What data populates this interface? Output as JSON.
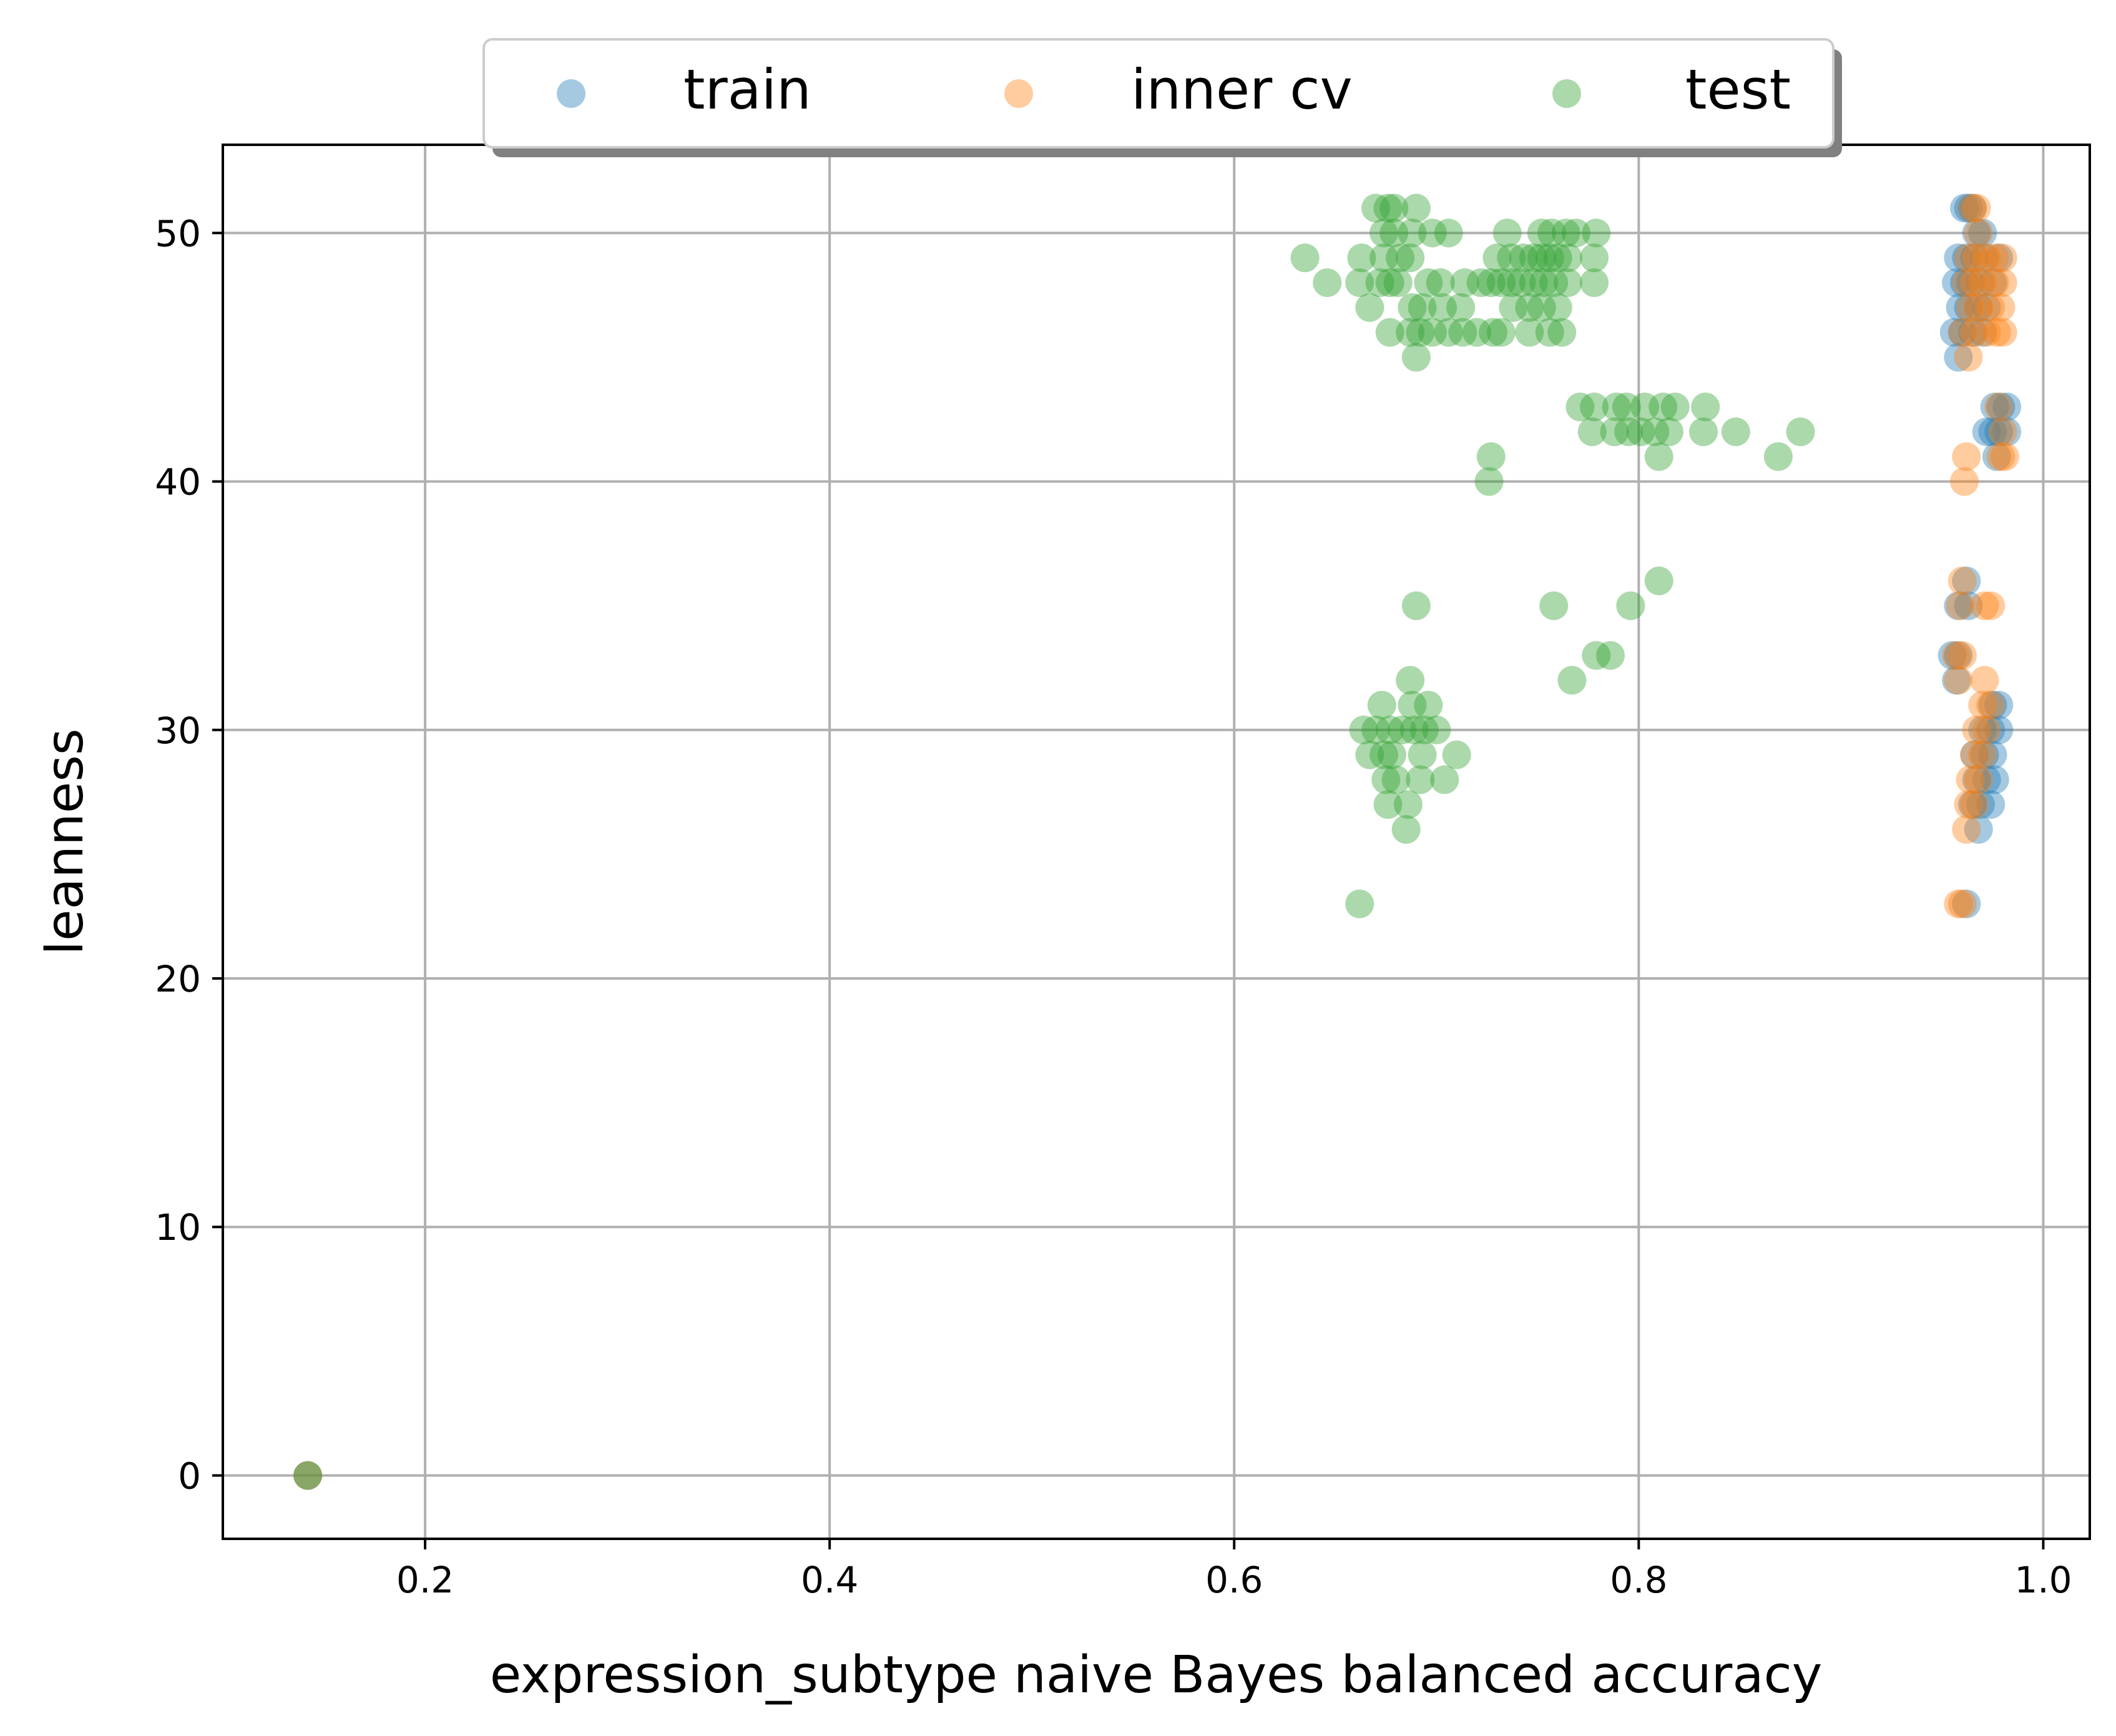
{
  "chart_data": {
    "type": "scatter",
    "title": "",
    "xlabel": "expression_subtype naive Bayes balanced accuracy",
    "ylabel": "leanness",
    "xlim": [
      0.1,
      1.023
    ],
    "ylim": [
      -2.55,
      53.55
    ],
    "xticks": [
      0.2,
      0.4,
      0.6,
      0.8,
      1.0
    ],
    "xtick_labels": [
      "0.2",
      "0.4",
      "0.6",
      "0.8",
      "1.0"
    ],
    "yticks": [
      0,
      10,
      20,
      30,
      40,
      50
    ],
    "ytick_labels": [
      "0",
      "10",
      "20",
      "30",
      "40",
      "50"
    ],
    "grid": true,
    "legend_position": "top-center, outside plot area",
    "series": [
      {
        "name": "train",
        "color": "#1f77b4",
        "points": [
          [
            0.142,
            0
          ],
          [
            0.961,
            51
          ],
          [
            0.963,
            51
          ],
          [
            0.965,
            51
          ],
          [
            0.967,
            50
          ],
          [
            0.97,
            50
          ],
          [
            0.958,
            49
          ],
          [
            0.962,
            49
          ],
          [
            0.966,
            49
          ],
          [
            0.971,
            49
          ],
          [
            0.978,
            49
          ],
          [
            0.957,
            48
          ],
          [
            0.961,
            48
          ],
          [
            0.964,
            48
          ],
          [
            0.969,
            48
          ],
          [
            0.975,
            48
          ],
          [
            0.959,
            47
          ],
          [
            0.963,
            47
          ],
          [
            0.968,
            47
          ],
          [
            0.972,
            47
          ],
          [
            0.956,
            46
          ],
          [
            0.96,
            46
          ],
          [
            0.965,
            46
          ],
          [
            0.97,
            46
          ],
          [
            0.958,
            45
          ],
          [
            0.976,
            43
          ],
          [
            0.979,
            43
          ],
          [
            0.982,
            43
          ],
          [
            0.972,
            42
          ],
          [
            0.975,
            42
          ],
          [
            0.978,
            42
          ],
          [
            0.982,
            42
          ],
          [
            0.977,
            41
          ],
          [
            0.962,
            36
          ],
          [
            0.958,
            35
          ],
          [
            0.963,
            35
          ],
          [
            0.955,
            33
          ],
          [
            0.958,
            33
          ],
          [
            0.957,
            32
          ],
          [
            0.975,
            31
          ],
          [
            0.978,
            31
          ],
          [
            0.97,
            30
          ],
          [
            0.974,
            30
          ],
          [
            0.978,
            30
          ],
          [
            0.966,
            29
          ],
          [
            0.971,
            29
          ],
          [
            0.975,
            29
          ],
          [
            0.967,
            28
          ],
          [
            0.972,
            28
          ],
          [
            0.976,
            28
          ],
          [
            0.965,
            27
          ],
          [
            0.969,
            27
          ],
          [
            0.974,
            27
          ],
          [
            0.968,
            26
          ],
          [
            0.962,
            23
          ]
        ]
      },
      {
        "name": "inner cv",
        "color": "#ff7f0e",
        "points": [
          [
            0.142,
            0
          ],
          [
            0.965,
            51
          ],
          [
            0.967,
            51
          ],
          [
            0.968,
            50
          ],
          [
            0.963,
            49
          ],
          [
            0.967,
            49
          ],
          [
            0.972,
            49
          ],
          [
            0.976,
            49
          ],
          [
            0.98,
            49
          ],
          [
            0.962,
            48
          ],
          [
            0.966,
            48
          ],
          [
            0.97,
            48
          ],
          [
            0.976,
            48
          ],
          [
            0.98,
            48
          ],
          [
            0.964,
            47
          ],
          [
            0.968,
            47
          ],
          [
            0.974,
            47
          ],
          [
            0.979,
            47
          ],
          [
            0.96,
            46
          ],
          [
            0.966,
            46
          ],
          [
            0.972,
            46
          ],
          [
            0.977,
            46
          ],
          [
            0.98,
            46
          ],
          [
            0.963,
            45
          ],
          [
            0.978,
            43
          ],
          [
            0.98,
            42
          ],
          [
            0.979,
            41
          ],
          [
            0.981,
            41
          ],
          [
            0.962,
            41
          ],
          [
            0.961,
            40
          ],
          [
            0.96,
            36
          ],
          [
            0.959,
            35
          ],
          [
            0.971,
            35
          ],
          [
            0.974,
            35
          ],
          [
            0.957,
            33
          ],
          [
            0.96,
            33
          ],
          [
            0.958,
            32
          ],
          [
            0.971,
            32
          ],
          [
            0.97,
            31
          ],
          [
            0.974,
            31
          ],
          [
            0.967,
            30
          ],
          [
            0.972,
            30
          ],
          [
            0.966,
            29
          ],
          [
            0.97,
            29
          ],
          [
            0.964,
            28
          ],
          [
            0.968,
            28
          ],
          [
            0.963,
            27
          ],
          [
            0.966,
            27
          ],
          [
            0.962,
            26
          ],
          [
            0.958,
            23
          ],
          [
            0.96,
            23
          ]
        ]
      },
      {
        "name": "test",
        "color": "#2ca02c",
        "points": [
          [
            0.142,
            0
          ],
          [
            0.67,
            51
          ],
          [
            0.676,
            51
          ],
          [
            0.679,
            51
          ],
          [
            0.69,
            51
          ],
          [
            0.674,
            50
          ],
          [
            0.679,
            50
          ],
          [
            0.688,
            50
          ],
          [
            0.698,
            50
          ],
          [
            0.706,
            50
          ],
          [
            0.735,
            50
          ],
          [
            0.752,
            50
          ],
          [
            0.757,
            50
          ],
          [
            0.764,
            50
          ],
          [
            0.769,
            50
          ],
          [
            0.779,
            50
          ],
          [
            0.635,
            49
          ],
          [
            0.663,
            49
          ],
          [
            0.674,
            49
          ],
          [
            0.682,
            49
          ],
          [
            0.687,
            49
          ],
          [
            0.73,
            49
          ],
          [
            0.737,
            49
          ],
          [
            0.743,
            49
          ],
          [
            0.748,
            49
          ],
          [
            0.752,
            49
          ],
          [
            0.756,
            49
          ],
          [
            0.76,
            49
          ],
          [
            0.765,
            49
          ],
          [
            0.778,
            49
          ],
          [
            0.646,
            48
          ],
          [
            0.662,
            48
          ],
          [
            0.672,
            48
          ],
          [
            0.677,
            48
          ],
          [
            0.681,
            48
          ],
          [
            0.696,
            48
          ],
          [
            0.702,
            48
          ],
          [
            0.714,
            48
          ],
          [
            0.722,
            48
          ],
          [
            0.727,
            48
          ],
          [
            0.732,
            48
          ],
          [
            0.737,
            48
          ],
          [
            0.742,
            48
          ],
          [
            0.748,
            48
          ],
          [
            0.753,
            48
          ],
          [
            0.758,
            48
          ],
          [
            0.765,
            48
          ],
          [
            0.778,
            48
          ],
          [
            0.667,
            47
          ],
          [
            0.688,
            47
          ],
          [
            0.693,
            47
          ],
          [
            0.703,
            47
          ],
          [
            0.712,
            47
          ],
          [
            0.738,
            47
          ],
          [
            0.746,
            47
          ],
          [
            0.752,
            47
          ],
          [
            0.76,
            47
          ],
          [
            0.677,
            46
          ],
          [
            0.687,
            46
          ],
          [
            0.692,
            46
          ],
          [
            0.698,
            46
          ],
          [
            0.706,
            46
          ],
          [
            0.713,
            46
          ],
          [
            0.72,
            46
          ],
          [
            0.728,
            46
          ],
          [
            0.732,
            46
          ],
          [
            0.746,
            46
          ],
          [
            0.756,
            46
          ],
          [
            0.762,
            46
          ],
          [
            0.69,
            45
          ],
          [
            0.771,
            43
          ],
          [
            0.778,
            43
          ],
          [
            0.789,
            43
          ],
          [
            0.794,
            43
          ],
          [
            0.803,
            43
          ],
          [
            0.812,
            43
          ],
          [
            0.818,
            43
          ],
          [
            0.833,
            43
          ],
          [
            0.777,
            42
          ],
          [
            0.788,
            42
          ],
          [
            0.795,
            42
          ],
          [
            0.801,
            42
          ],
          [
            0.808,
            42
          ],
          [
            0.815,
            42
          ],
          [
            0.832,
            42
          ],
          [
            0.848,
            42
          ],
          [
            0.88,
            42
          ],
          [
            0.727,
            41
          ],
          [
            0.81,
            41
          ],
          [
            0.869,
            41
          ],
          [
            0.726,
            40
          ],
          [
            0.81,
            36
          ],
          [
            0.69,
            35
          ],
          [
            0.758,
            35
          ],
          [
            0.796,
            35
          ],
          [
            0.779,
            33
          ],
          [
            0.786,
            33
          ],
          [
            0.767,
            32
          ],
          [
            0.687,
            32
          ],
          [
            0.673,
            31
          ],
          [
            0.688,
            31
          ],
          [
            0.696,
            31
          ],
          [
            0.664,
            30
          ],
          [
            0.67,
            30
          ],
          [
            0.677,
            30
          ],
          [
            0.683,
            30
          ],
          [
            0.689,
            30
          ],
          [
            0.694,
            30
          ],
          [
            0.7,
            30
          ],
          [
            0.667,
            29
          ],
          [
            0.674,
            29
          ],
          [
            0.678,
            29
          ],
          [
            0.693,
            29
          ],
          [
            0.71,
            29
          ],
          [
            0.675,
            28
          ],
          [
            0.68,
            28
          ],
          [
            0.692,
            28
          ],
          [
            0.704,
            28
          ],
          [
            0.676,
            27
          ],
          [
            0.686,
            27
          ],
          [
            0.685,
            26
          ],
          [
            0.662,
            23
          ]
        ]
      }
    ]
  }
}
